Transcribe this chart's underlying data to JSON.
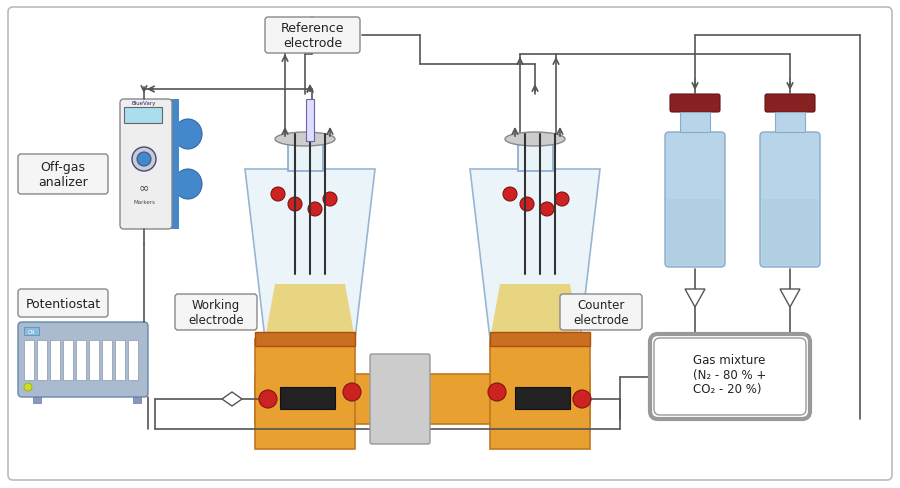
{
  "bg_color": "#ffffff",
  "border_color": "#cccccc",
  "label_off_gas": "Off-gas\nanalizer",
  "label_potentiostat": "Potentiostat",
  "label_reference": "Reference\nelectrode",
  "label_working": "Working\nelectrode",
  "label_counter": "Counter\nelectrode",
  "label_gas": "Gas mixture\n(N₂ - 80 % +\nCO₂ - 20 %)",
  "yellow_color": "#E8A030",
  "yellow_light": "#F0C060",
  "red_color": "#CC2222",
  "blue_light": "#B8D4E8",
  "blue_device": "#4488CC",
  "blue_potentiostat": "#88AACC",
  "gray_light": "#DDDDDD",
  "gray_mid": "#AAAAAA",
  "glass_color": "#E8F4F8",
  "line_color": "#555555",
  "arrow_color": "#555555"
}
